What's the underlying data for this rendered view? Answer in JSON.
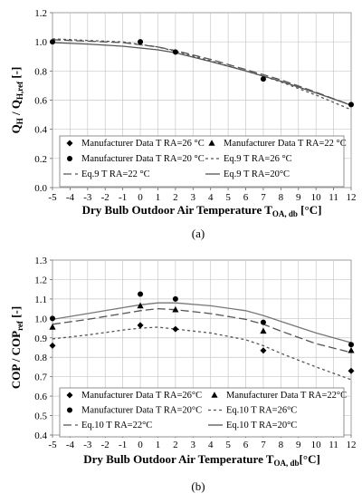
{
  "chart_data": [
    {
      "type": "line",
      "caption": "(a)",
      "xlabel": "Dry Bulb Outdoor Air Temperature T",
      "xlabel_sub": "OA, db",
      "xlabel_unit": " [°C]",
      "ylabel": "Q",
      "ylabel_sub1": "H",
      "ylabel_mid": " / Q",
      "ylabel_sub2": "H,ref",
      "ylabel_unit": " [-]",
      "xlim": [
        -5,
        12
      ],
      "ylim": [
        0.0,
        1.2
      ],
      "x_ticks": [
        -5,
        -4,
        -3,
        -2,
        -1,
        0,
        1,
        2,
        3,
        4,
        5,
        6,
        7,
        8,
        9,
        10,
        11,
        12
      ],
      "x_tick_labels": [
        "-5",
        "-4",
        "-3",
        "-2",
        "-1",
        "0",
        "1",
        "2",
        "3",
        "4",
        "5",
        "6",
        "7",
        "8",
        "9",
        "10",
        "11",
        "12"
      ],
      "y_ticks": [
        0.0,
        0.2,
        0.4,
        0.6,
        0.8,
        1.0,
        1.2
      ],
      "y_tick_labels": [
        "0.0",
        "0.2",
        "0.4",
        "0.6",
        "0.8",
        "1.0",
        "1.2"
      ],
      "grid": true,
      "legend_position": "bottom-left",
      "legend": [
        {
          "label": "Manufacturer Data T RA=26 °C",
          "marker": "diamond"
        },
        {
          "label": "Manufacturer Data T RA=22 °C",
          "marker": "triangle"
        },
        {
          "label": "Manufacturer Data T RA=20 °C",
          "marker": "circle"
        },
        {
          "label": "Eq.9 T RA=26 °C",
          "line": "short-dash"
        },
        {
          "label": "Eq.9 T RA=22 °C",
          "line": "long-dash"
        },
        {
          "label": "Eq.9 T RA=20°C",
          "line": "solid"
        }
      ],
      "points": [
        {
          "series": "Manufacturer Data T RA=20 °C",
          "marker": "circle",
          "x": [
            -5,
            0,
            2,
            7,
            12
          ],
          "y": [
            1.0,
            1.0,
            0.93,
            0.745,
            0.57
          ]
        }
      ],
      "lines": [
        {
          "name": "Eq.9 T RA=26 °C",
          "dash": "short-dash",
          "color": "#555555",
          "x": [
            -5,
            -3,
            -1,
            1,
            2,
            4,
            6,
            7,
            8,
            10,
            12
          ],
          "y": [
            1.02,
            1.01,
            1.0,
            0.965,
            0.935,
            0.87,
            0.8,
            0.765,
            0.725,
            0.635,
            0.535
          ]
        },
        {
          "name": "Eq.9 T RA=22 °C",
          "dash": "long-dash",
          "color": "#555555",
          "x": [
            -5,
            -3,
            -1,
            1,
            2,
            4,
            6,
            7,
            8,
            10,
            12
          ],
          "y": [
            1.015,
            1.005,
            0.995,
            0.965,
            0.94,
            0.88,
            0.81,
            0.775,
            0.74,
            0.655,
            0.565
          ]
        },
        {
          "name": "Eq.9 T RA=20°C",
          "dash": "solid",
          "color": "#555555",
          "x": [
            -5,
            -3,
            -1,
            1,
            2,
            4,
            6,
            7,
            8,
            10,
            12
          ],
          "y": [
            0.995,
            0.985,
            0.97,
            0.945,
            0.925,
            0.865,
            0.8,
            0.765,
            0.73,
            0.65,
            0.565
          ]
        }
      ]
    },
    {
      "type": "line",
      "caption": "(b)",
      "xlabel": "Dry Bulb Outdoor Air Temperature T",
      "xlabel_sub": "OA, db",
      "xlabel_unit": "[°C]",
      "ylabel": "COP / COP",
      "ylabel_sub1": "ref",
      "ylabel_mid": "",
      "ylabel_sub2": "",
      "ylabel_unit": " [-]",
      "xlim": [
        -5,
        12
      ],
      "ylim": [
        0.4,
        1.3
      ],
      "x_ticks": [
        -5,
        -4,
        -3,
        -2,
        -1,
        0,
        1,
        2,
        3,
        4,
        5,
        6,
        7,
        8,
        9,
        10,
        11,
        12
      ],
      "x_tick_labels": [
        "-5",
        "-4",
        "-3",
        "-2",
        "-1",
        "0",
        "1",
        "2",
        "3",
        "4",
        "5",
        "6",
        "7",
        "8",
        "9",
        "10",
        "11",
        "12"
      ],
      "y_ticks": [
        0.4,
        0.5,
        0.6,
        0.7,
        0.8,
        0.9,
        1.0,
        1.1,
        1.2,
        1.3
      ],
      "y_tick_labels": [
        "0.4",
        "0.5",
        "0.6",
        "0.7",
        "0.8",
        "0.9",
        "1.0",
        "1.1",
        "1.2",
        "1.3"
      ],
      "grid": true,
      "legend_position": "bottom-left",
      "legend": [
        {
          "label": "Manufacturer Data T RA=26°C",
          "marker": "diamond"
        },
        {
          "label": "Manufacturer Data T RA=22°C",
          "marker": "triangle"
        },
        {
          "label": "Manufacturer Data T RA=20°C",
          "marker": "circle"
        },
        {
          "label": "Eq.10  T RA=26°C",
          "line": "short-dash"
        },
        {
          "label": "Eq.10  T RA=22°C",
          "line": "long-dash"
        },
        {
          "label": "Eq.10  T RA=20°C",
          "line": "solid"
        }
      ],
      "points": [
        {
          "series": "Manufacturer Data T RA=26°C",
          "marker": "diamond",
          "x": [
            -5,
            0,
            2,
            7,
            12
          ],
          "y": [
            0.86,
            0.965,
            0.945,
            0.835,
            0.73
          ]
        },
        {
          "series": "Manufacturer Data T RA=22°C",
          "marker": "triangle",
          "x": [
            -5,
            0,
            2,
            7,
            12
          ],
          "y": [
            0.955,
            1.065,
            1.045,
            0.935,
            0.835
          ]
        },
        {
          "series": "Manufacturer Data T RA=20°C",
          "marker": "circle",
          "x": [
            -5,
            0,
            2,
            7,
            12
          ],
          "y": [
            1.0,
            1.125,
            1.1,
            0.98,
            0.865
          ]
        }
      ],
      "lines": [
        {
          "name": "Eq.10  T RA=26°C",
          "dash": "short-dash",
          "color": "#555555",
          "x": [
            -5,
            -3,
            -1,
            0,
            1,
            2,
            4,
            6,
            7,
            8,
            10,
            12
          ],
          "y": [
            0.895,
            0.915,
            0.94,
            0.95,
            0.955,
            0.945,
            0.925,
            0.89,
            0.86,
            0.82,
            0.75,
            0.685
          ]
        },
        {
          "name": "Eq.10  T RA=22°C",
          "dash": "long-dash",
          "color": "#555555",
          "x": [
            -5,
            -3,
            -1,
            0,
            1,
            2,
            4,
            6,
            7,
            8,
            10,
            12
          ],
          "y": [
            0.97,
            0.995,
            1.025,
            1.04,
            1.05,
            1.045,
            1.025,
            0.995,
            0.97,
            0.935,
            0.87,
            0.825
          ]
        },
        {
          "name": "Eq.10  T RA=20°C",
          "dash": "solid",
          "color": "#777777",
          "x": [
            -5,
            -3,
            -1,
            0,
            1,
            2,
            4,
            6,
            7,
            8,
            10,
            12
          ],
          "y": [
            0.995,
            1.025,
            1.055,
            1.07,
            1.08,
            1.08,
            1.065,
            1.04,
            1.015,
            0.985,
            0.925,
            0.875
          ]
        }
      ]
    }
  ]
}
